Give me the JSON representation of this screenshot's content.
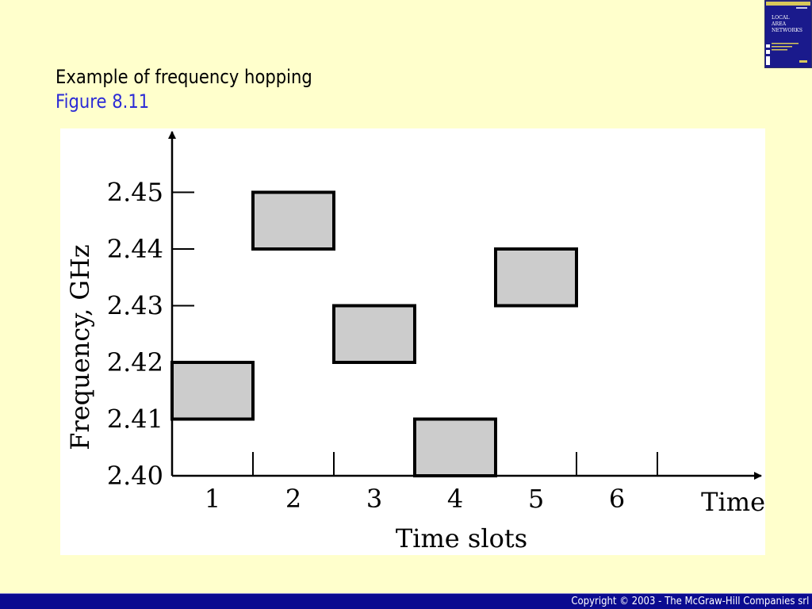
{
  "slide": {
    "title": "Example of frequency hopping",
    "subtitle": "Figure 8.11",
    "title_color": "#000000",
    "subtitle_color": "#2b2bd6",
    "background_color": "#ffffcc"
  },
  "book_cover": {
    "title": "LOCAL AREA NETWORKS",
    "author": "Behrouz Forouzan",
    "cover_color": "#1a1a8c"
  },
  "footer": {
    "copyright": "Copyright © 2003 - The McGraw-Hill Companies srl",
    "bar_color": "#0b0b90"
  },
  "chart_data": {
    "type": "scatter",
    "title": "",
    "xlabel": "Time slots",
    "ylabel": "Frequency, GHz",
    "x_axis_end_label": "Time",
    "x_ticks": [
      "1",
      "2",
      "3",
      "4",
      "5",
      "6"
    ],
    "y_ticks": [
      "2.40",
      "2.41",
      "2.42",
      "2.43",
      "2.44",
      "2.45"
    ],
    "xlim": [
      0.5,
      6.5
    ],
    "ylim": [
      2.4,
      2.45
    ],
    "grid": false,
    "block_fill": "#cccccc",
    "block_stroke": "#000000",
    "hops": [
      {
        "slot": 1,
        "freq_low": 2.41,
        "freq_high": 2.42
      },
      {
        "slot": 2,
        "freq_low": 2.44,
        "freq_high": 2.45
      },
      {
        "slot": 3,
        "freq_low": 2.42,
        "freq_high": 2.43
      },
      {
        "slot": 4,
        "freq_low": 2.4,
        "freq_high": 2.41
      },
      {
        "slot": 5,
        "freq_low": 2.43,
        "freq_high": 2.44
      }
    ]
  }
}
